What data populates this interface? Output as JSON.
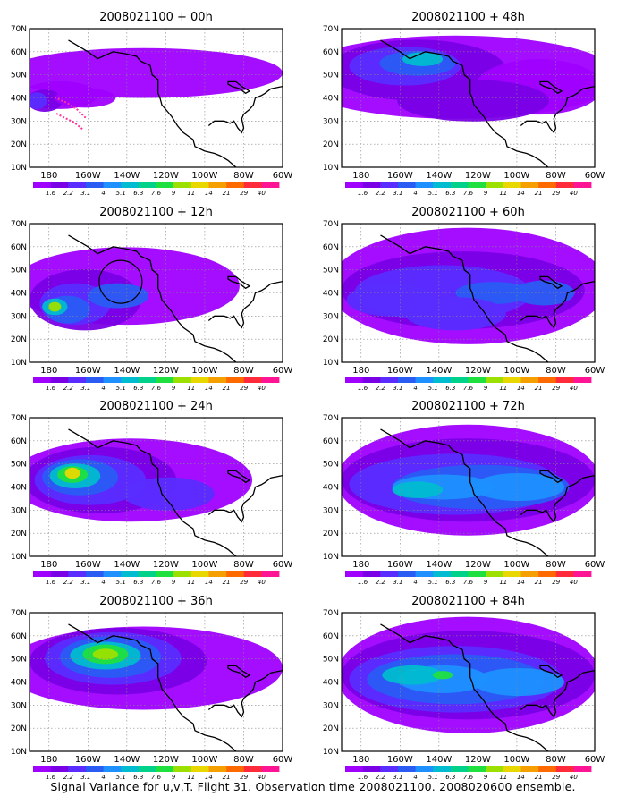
{
  "panels": [
    {
      "title": "2008021100 + 00h"
    },
    {
      "title": "2008021100 + 48h"
    },
    {
      "title": "2008021100 + 12h"
    },
    {
      "title": "2008021100 + 60h"
    },
    {
      "title": "2008021100 + 24h"
    },
    {
      "title": "2008021100 + 72h"
    },
    {
      "title": "2008021100 + 36h"
    },
    {
      "title": "2008021100 + 84h"
    }
  ],
  "map": {
    "lat_labels": [
      "70N",
      "60N",
      "50N",
      "40N",
      "30N",
      "20N",
      "10N"
    ],
    "lon_labels": [
      "180",
      "160W",
      "140W",
      "120W",
      "100W",
      "80W",
      "60W"
    ],
    "lat_range": [
      10,
      70
    ],
    "lon_range": [
      "170E",
      "60W"
    ]
  },
  "colorbar": {
    "labels": [
      "1.6",
      "2.2",
      "3.1",
      "4",
      "5.1",
      "6.3",
      "7.6",
      "9",
      "11",
      "14",
      "21",
      "29",
      "40"
    ],
    "colors": [
      "#9f00ff",
      "#7a00e6",
      "#5a2cff",
      "#2a5cf4",
      "#1e90ff",
      "#00bcd0",
      "#00d28a",
      "#20e040",
      "#9be000",
      "#e8d800",
      "#f5a000",
      "#ff6a00",
      "#ff2a3a",
      "#ff1493"
    ]
  },
  "footer": "Signal Variance for u,v,T. Flight 31. Observation time 2008021100. 2008020600 ensemble."
}
